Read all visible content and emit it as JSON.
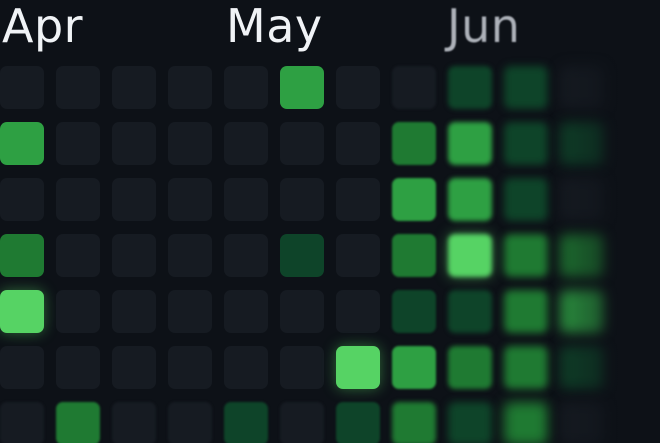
{
  "months": [
    "Apr",
    "May",
    "Jun"
  ],
  "colors": {
    "background": "#0d1117",
    "level_0": "#161b22",
    "level_1": "#0e4429",
    "level_2": "#1f7a32",
    "level_3": "#2ea043",
    "level_4": "#56d364"
  },
  "grid": {
    "rows": [
      [
        0,
        0,
        0,
        0,
        0,
        3,
        0,
        0,
        1,
        1,
        0
      ],
      [
        3,
        0,
        0,
        0,
        0,
        0,
        0,
        2,
        3,
        1,
        1
      ],
      [
        0,
        0,
        0,
        0,
        0,
        0,
        0,
        3,
        3,
        1,
        0
      ],
      [
        2,
        0,
        0,
        0,
        0,
        1,
        0,
        2,
        4,
        2,
        2
      ],
      [
        4,
        0,
        0,
        0,
        0,
        0,
        0,
        1,
        1,
        2,
        3
      ],
      [
        0,
        0,
        0,
        0,
        0,
        0,
        4,
        3,
        2,
        2,
        1
      ],
      [
        0,
        2,
        0,
        0,
        1,
        0,
        1,
        2,
        1,
        2,
        0
      ]
    ]
  }
}
